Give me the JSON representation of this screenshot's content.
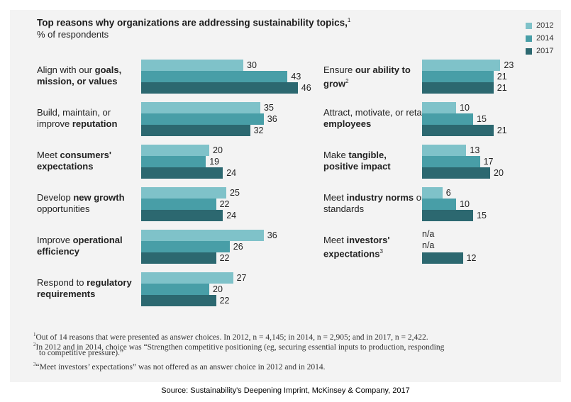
{
  "header": {
    "title": "Top reasons why organizations are addressing sustainability topics,",
    "title_note": "1",
    "subtitle": "% of respondents"
  },
  "colors": {
    "2012": "#7fc2c9",
    "2014": "#489ea7",
    "2017": "#2c6870"
  },
  "chart_data": {
    "type": "bar",
    "orientation": "horizontal",
    "title": "Top reasons why organizations are addressing sustainability topics,",
    "subtitle": "% of respondents",
    "legend": [
      "2012",
      "2014",
      "2017"
    ],
    "legend_position": "top-right",
    "categories": [
      {
        "pre": "Align with our ",
        "bold": "goals, mission, or values",
        "post": "",
        "note": "",
        "values": {
          "2012": 30,
          "2014": 43,
          "2017": 46
        }
      },
      {
        "pre": "Build, maintain, or improve ",
        "bold": "reputation",
        "post": "",
        "note": "",
        "values": {
          "2012": 35,
          "2014": 36,
          "2017": 32
        }
      },
      {
        "pre": "Meet ",
        "bold": "consumers' expectations",
        "post": "",
        "note": "",
        "values": {
          "2012": 20,
          "2014": 19,
          "2017": 24
        }
      },
      {
        "pre": "Develop ",
        "bold": "new growth",
        "post": " opportunities",
        "note": "",
        "values": {
          "2012": 25,
          "2014": 22,
          "2017": 24
        }
      },
      {
        "pre": "Improve ",
        "bold": "operational efficiency",
        "post": "",
        "note": "",
        "values": {
          "2012": 36,
          "2014": 26,
          "2017": 22
        }
      },
      {
        "pre": "Respond to ",
        "bold": "regulatory requirements",
        "post": "",
        "note": "",
        "values": {
          "2012": 27,
          "2014": 20,
          "2017": 22
        }
      },
      {
        "pre": "Ensure ",
        "bold": "our ability to grow",
        "post": "",
        "note": "2",
        "values": {
          "2012": 23,
          "2014": 21,
          "2017": 21
        }
      },
      {
        "pre": "Attract, motivate, or retain ",
        "bold": "employees",
        "post": "",
        "note": "",
        "values": {
          "2012": 10,
          "2014": 15,
          "2017": 21
        }
      },
      {
        "pre": "Make ",
        "bold": "tangible,",
        "post": "",
        "bold2": "positive impact",
        "note": "",
        "values": {
          "2012": 13,
          "2014": 17,
          "2017": 20
        }
      },
      {
        "pre": "Meet ",
        "bold": "industry norms",
        "post": " or standards",
        "note": "",
        "values": {
          "2012": 6,
          "2014": 10,
          "2017": 15
        }
      },
      {
        "pre": "Meet ",
        "bold": "investors' expectations",
        "post": "",
        "note": "3",
        "values": {
          "2012": null,
          "2014": null,
          "2017": 12
        }
      }
    ],
    "missing_label": "n/a"
  },
  "footnotes": [
    {
      "mark": "1",
      "text": "Out of 14 reasons that were presented as answer choices. In 2012, n = 4,145; in 2014, n = 2,905; and in 2017, n = 2,422."
    },
    {
      "mark": "2",
      "text": "In 2012 and in 2014, choice was “Strengthen competitive positioning (eg, securing essential inputs to production, responding"
    },
    {
      "mark": "",
      "text": "to competitive pressure).”"
    },
    {
      "mark": "3",
      "text": "“Meet investors’ expectations” was not offered as an answer choice in 2012 and in 2014."
    }
  ],
  "source": "Source: Sustainability's Deepening Imprint, McKinsey & Company, 2017"
}
